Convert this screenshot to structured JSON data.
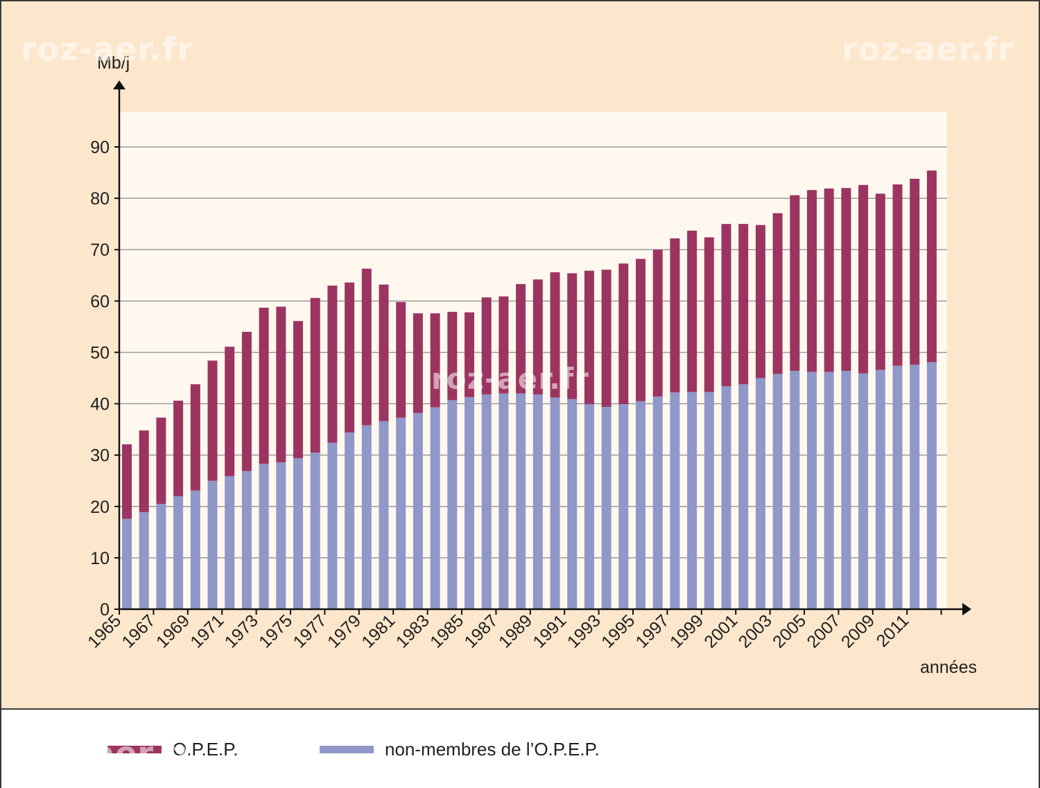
{
  "chart_data": {
    "type": "bar",
    "stacked": true,
    "ylabel": "Mb/j",
    "xlabel": "années",
    "ylim": [
      0,
      96
    ],
    "yticks": [
      0,
      10,
      20,
      30,
      40,
      50,
      60,
      70,
      80,
      90
    ],
    "x_tick_labels": [
      "1965",
      "1967",
      "1969",
      "1971",
      "1973",
      "1975",
      "1977",
      "1979",
      "1981",
      "1983",
      "1985",
      "1987",
      "1989",
      "1991",
      "1993",
      "1995",
      "1997",
      "1999",
      "2001",
      "2003",
      "2005",
      "2007",
      "2009",
      "2011"
    ],
    "categories": [
      "1965",
      "1966",
      "1967",
      "1968",
      "1969",
      "1970",
      "1971",
      "1972",
      "1973",
      "1974",
      "1975",
      "1976",
      "1977",
      "1978",
      "1979",
      "1980",
      "1981",
      "1982",
      "1983",
      "1984",
      "1985",
      "1986",
      "1987",
      "1988",
      "1989",
      "1990",
      "1991",
      "1992",
      "1993",
      "1994",
      "1995",
      "1996",
      "1997",
      "1998",
      "1999",
      "2000",
      "2001",
      "2002",
      "2003",
      "2004",
      "2005",
      "2006",
      "2007",
      "2008",
      "2009",
      "2010",
      "2011",
      "2012"
    ],
    "series": [
      {
        "name": "non-membres de l’O.P.E.P.",
        "color": "#9097c9",
        "values": [
          17.6,
          18.9,
          20.5,
          22.0,
          23.1,
          25.0,
          25.9,
          26.9,
          28.3,
          28.6,
          29.4,
          30.5,
          32.4,
          34.4,
          35.8,
          36.6,
          37.3,
          38.2,
          39.3,
          40.7,
          41.3,
          41.8,
          42.0,
          42.0,
          41.8,
          41.2,
          40.9,
          39.9,
          39.4,
          39.9,
          40.5,
          41.4,
          42.2,
          42.3,
          42.3,
          43.4,
          43.8,
          45.0,
          45.8,
          46.4,
          46.2,
          46.2,
          46.4,
          45.9,
          46.6,
          47.4,
          47.6,
          48.1
        ]
      },
      {
        "name": "O.P.E.P.",
        "color": "#9c3461",
        "values": [
          14.5,
          15.9,
          16.8,
          18.6,
          20.7,
          23.4,
          25.2,
          27.1,
          30.4,
          30.3,
          26.7,
          30.1,
          30.6,
          29.2,
          30.5,
          26.6,
          22.5,
          19.4,
          18.3,
          17.2,
          16.5,
          18.9,
          18.9,
          21.3,
          22.4,
          24.4,
          24.5,
          26.0,
          26.7,
          27.4,
          27.7,
          28.6,
          30.0,
          31.4,
          30.1,
          31.6,
          31.2,
          29.8,
          31.3,
          34.2,
          35.4,
          35.7,
          35.6,
          36.7,
          34.3,
          35.3,
          36.2,
          37.3
        ]
      }
    ],
    "grid": true,
    "legend_position": "bottom"
  },
  "legend": [
    {
      "label": "O.P.E.P.",
      "color": "#9c3461"
    },
    {
      "label": "non-membres de l’O.P.E.P.",
      "color": "#9097c9"
    }
  ],
  "watermark": "roz-aer.fr",
  "colors": {
    "outer_background": "#fde7cc",
    "plot_background": "#fff8ee",
    "gridline": "#9a9a9a",
    "axis": "#111111"
  }
}
